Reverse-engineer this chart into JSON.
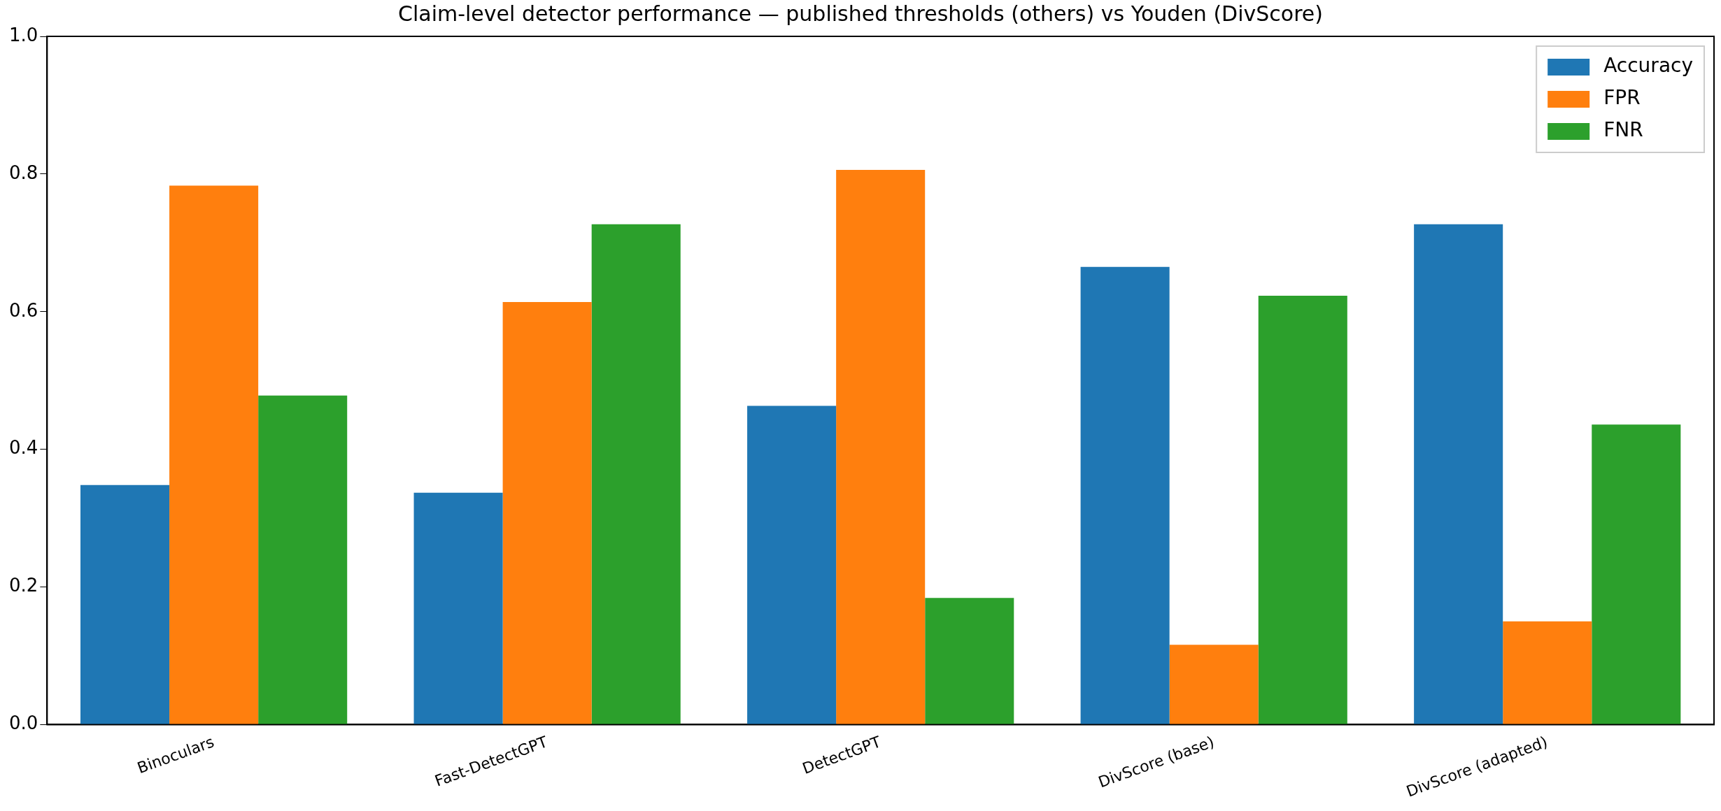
{
  "chart_data": {
    "type": "bar",
    "title": "Claim-level detector performance — published thresholds (others) vs Youden (DivScore)",
    "categories": [
      "Binoculars",
      "Fast-DetectGPT",
      "DetectGPT",
      "DivScore (base)",
      "DivScore (adapted)"
    ],
    "series": [
      {
        "name": "Accuracy",
        "color": "#1f77b4",
        "values": [
          0.348,
          0.337,
          0.463,
          0.665,
          0.727
        ]
      },
      {
        "name": "FPR",
        "color": "#ff7f0e",
        "values": [
          0.783,
          0.614,
          0.806,
          0.116,
          0.15
        ]
      },
      {
        "name": "FNR",
        "color": "#2ca02c",
        "values": [
          0.478,
          0.727,
          0.184,
          0.623,
          0.436
        ]
      }
    ],
    "ylim": [
      0,
      1
    ],
    "yticks": [
      {
        "value": 0,
        "label": "0.0"
      },
      {
        "value": 0.2,
        "label": "0.2"
      },
      {
        "value": 0.4,
        "label": "0.4"
      },
      {
        "value": 0.6,
        "label": "0.6"
      },
      {
        "value": 0.8,
        "label": "0.8"
      },
      {
        "value": 1,
        "label": "1.0"
      }
    ],
    "grid": false,
    "legend": "top right"
  }
}
